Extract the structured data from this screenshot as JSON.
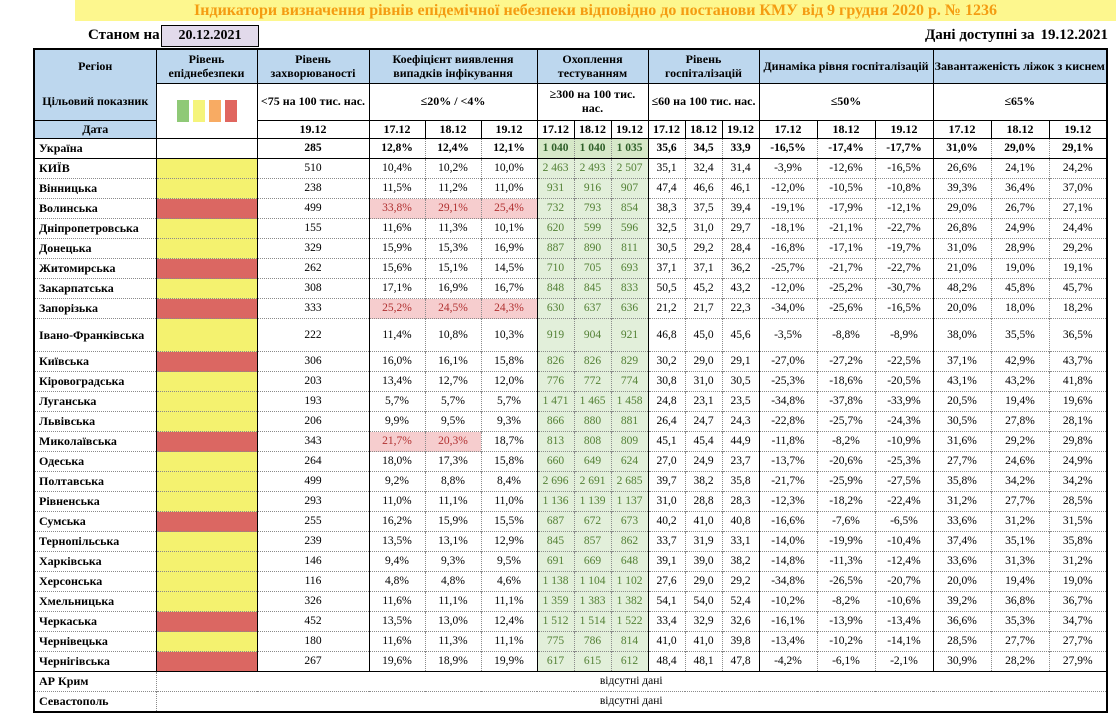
{
  "title": "Індикатори визначення рівнів епідемічної небезпеки відповідно до постанови КМУ від 9 грудня 2020 р. № 1236",
  "as_of": {
    "label": "Станом на",
    "date": "20.12.2021"
  },
  "available": {
    "label": "Дані доступні за",
    "date": "19.12.2021"
  },
  "colors": {
    "title_bg": "#FDF78E",
    "title_text": "#F49C12",
    "header_bg": "#BDD7EE",
    "date_box_bg": "#E2DAEB",
    "epid_yellow": "#F4F26F",
    "epid_red": "#DB6762",
    "testing_bg": "#E2EFDA",
    "testing_text": "#538135",
    "alert_bg": "#F6CDCE",
    "alert_text": "#B03030"
  },
  "legend_colors": [
    "#8FC977",
    "#F5F47B",
    "#F8AB63",
    "#E0665F"
  ],
  "columns": {
    "region_header": "Регіон",
    "target_label": "Цільовий показник",
    "date_label": "Дата",
    "groups": [
      {
        "id": "epid",
        "title": "Рівень епіднебезпеки",
        "target": "",
        "dates": []
      },
      {
        "id": "incidence",
        "title": "Рівень захворюваності",
        "target": "<75 на 100 тис. нас.",
        "dates": [
          "19.12"
        ]
      },
      {
        "id": "detection",
        "title": "Коефіцієнт виявлення випадків інфікування",
        "target": "≤20% / <4%",
        "dates": [
          "17.12",
          "18.12",
          "19.12"
        ]
      },
      {
        "id": "testing",
        "title": "Охоплення тестуванням",
        "target": "≥300 на 100 тис. нас.",
        "dates": [
          "17.12",
          "18.12",
          "19.12"
        ]
      },
      {
        "id": "hosp",
        "title": "Рівень госпіталізацій",
        "target": "≤60 на 100 тис. нас.",
        "dates": [
          "17.12",
          "18.12",
          "19.12"
        ]
      },
      {
        "id": "dynamics",
        "title": "Динаміка рівня госпіталізацій",
        "target": "≤50%",
        "dates": [
          "17.12",
          "18.12",
          "19.12"
        ]
      },
      {
        "id": "beds",
        "title": "Завантаженість ліжок з киснем",
        "target": "≤65%",
        "dates": [
          "17.12",
          "18.12",
          "19.12"
        ]
      }
    ]
  },
  "rows": [
    {
      "region": "Україна",
      "bold": true,
      "epid": "none",
      "incidence": "285",
      "detection": [
        "12,8%",
        "12,4%",
        "12,1%"
      ],
      "detection_alert": [
        false,
        false,
        false
      ],
      "testing": [
        "1 040",
        "1 040",
        "1 035"
      ],
      "hosp": [
        "35,6",
        "34,5",
        "33,9"
      ],
      "dynamics": [
        "-16,5%",
        "-17,4%",
        "-17,7%"
      ],
      "beds": [
        "31,0%",
        "29,0%",
        "29,1%"
      ]
    },
    {
      "region": "КИЇВ",
      "solid_top": true,
      "epid": "yellow",
      "incidence": "510",
      "detection": [
        "10,4%",
        "10,2%",
        "10,0%"
      ],
      "detection_alert": [
        false,
        false,
        false
      ],
      "testing": [
        "2 463",
        "2 493",
        "2 507"
      ],
      "hosp": [
        "35,1",
        "32,4",
        "31,4"
      ],
      "dynamics": [
        "-3,9%",
        "-12,6%",
        "-16,5%"
      ],
      "beds": [
        "26,6%",
        "24,1%",
        "24,2%"
      ]
    },
    {
      "region": "Вінницька",
      "epid": "yellow",
      "incidence": "238",
      "detection": [
        "11,5%",
        "11,2%",
        "11,0%"
      ],
      "detection_alert": [
        false,
        false,
        false
      ],
      "testing": [
        "931",
        "916",
        "907"
      ],
      "hosp": [
        "47,4",
        "46,6",
        "46,1"
      ],
      "dynamics": [
        "-12,0%",
        "-10,5%",
        "-10,8%"
      ],
      "beds": [
        "39,3%",
        "36,4%",
        "37,0%"
      ]
    },
    {
      "region": "Волинська",
      "epid": "red",
      "incidence": "499",
      "detection": [
        "33,8%",
        "29,1%",
        "25,4%"
      ],
      "detection_alert": [
        true,
        true,
        true
      ],
      "testing": [
        "732",
        "793",
        "854"
      ],
      "hosp": [
        "38,3",
        "37,5",
        "39,4"
      ],
      "dynamics": [
        "-19,1%",
        "-17,9%",
        "-12,1%"
      ],
      "beds": [
        "29,0%",
        "26,7%",
        "27,1%"
      ]
    },
    {
      "region": "Дніпропетровська",
      "epid": "yellow",
      "incidence": "155",
      "detection": [
        "11,6%",
        "11,3%",
        "10,1%"
      ],
      "detection_alert": [
        false,
        false,
        false
      ],
      "testing": [
        "620",
        "599",
        "596"
      ],
      "hosp": [
        "32,5",
        "31,0",
        "29,7"
      ],
      "dynamics": [
        "-18,1%",
        "-21,1%",
        "-22,7%"
      ],
      "beds": [
        "26,8%",
        "24,9%",
        "24,4%"
      ]
    },
    {
      "region": "Донецька",
      "epid": "yellow",
      "incidence": "329",
      "detection": [
        "15,9%",
        "15,3%",
        "16,9%"
      ],
      "detection_alert": [
        false,
        false,
        false
      ],
      "testing": [
        "887",
        "890",
        "811"
      ],
      "hosp": [
        "30,5",
        "29,2",
        "28,4"
      ],
      "dynamics": [
        "-16,8%",
        "-17,1%",
        "-19,7%"
      ],
      "beds": [
        "31,0%",
        "28,9%",
        "29,2%"
      ]
    },
    {
      "region": "Житомирська",
      "epid": "red",
      "incidence": "262",
      "detection": [
        "15,6%",
        "15,1%",
        "14,5%"
      ],
      "detection_alert": [
        false,
        false,
        false
      ],
      "testing": [
        "710",
        "705",
        "693"
      ],
      "hosp": [
        "37,1",
        "37,1",
        "36,2"
      ],
      "dynamics": [
        "-25,7%",
        "-21,7%",
        "-22,7%"
      ],
      "beds": [
        "21,0%",
        "19,0%",
        "19,1%"
      ]
    },
    {
      "region": "Закарпатська",
      "epid": "yellow",
      "incidence": "308",
      "detection": [
        "17,1%",
        "16,9%",
        "16,7%"
      ],
      "detection_alert": [
        false,
        false,
        false
      ],
      "testing": [
        "848",
        "845",
        "833"
      ],
      "hosp": [
        "50,5",
        "45,2",
        "43,2"
      ],
      "dynamics": [
        "-12,0%",
        "-25,2%",
        "-30,7%"
      ],
      "beds": [
        "48,2%",
        "45,8%",
        "45,7%"
      ]
    },
    {
      "region": "Запорізька",
      "epid": "red",
      "incidence": "333",
      "detection": [
        "25,2%",
        "24,5%",
        "24,3%"
      ],
      "detection_alert": [
        true,
        true,
        true
      ],
      "testing": [
        "630",
        "637",
        "636"
      ],
      "hosp": [
        "21,2",
        "21,7",
        "22,3"
      ],
      "dynamics": [
        "-34,0%",
        "-25,6%",
        "-16,5%"
      ],
      "beds": [
        "20,0%",
        "18,0%",
        "18,2%"
      ]
    },
    {
      "region": "Івано-Франківська",
      "tall": true,
      "epid": "yellow",
      "incidence": "222",
      "detection": [
        "11,4%",
        "10,8%",
        "10,3%"
      ],
      "detection_alert": [
        false,
        false,
        false
      ],
      "testing": [
        "919",
        "904",
        "921"
      ],
      "hosp": [
        "46,8",
        "45,0",
        "45,6"
      ],
      "dynamics": [
        "-3,5%",
        "-8,8%",
        "-8,9%"
      ],
      "beds": [
        "38,0%",
        "35,5%",
        "36,5%"
      ]
    },
    {
      "region": "Київська",
      "epid": "red",
      "incidence": "306",
      "detection": [
        "16,0%",
        "16,1%",
        "15,8%"
      ],
      "detection_alert": [
        false,
        false,
        false
      ],
      "testing": [
        "826",
        "826",
        "829"
      ],
      "hosp": [
        "30,2",
        "29,0",
        "29,1"
      ],
      "dynamics": [
        "-27,0%",
        "-27,2%",
        "-22,5%"
      ],
      "beds": [
        "37,1%",
        "42,9%",
        "43,7%"
      ]
    },
    {
      "region": "Кіровоградська",
      "epid": "yellow",
      "incidence": "203",
      "detection": [
        "13,4%",
        "12,7%",
        "12,0%"
      ],
      "detection_alert": [
        false,
        false,
        false
      ],
      "testing": [
        "776",
        "772",
        "774"
      ],
      "hosp": [
        "30,8",
        "31,0",
        "30,5"
      ],
      "dynamics": [
        "-25,3%",
        "-18,6%",
        "-20,5%"
      ],
      "beds": [
        "43,1%",
        "43,2%",
        "41,8%"
      ]
    },
    {
      "region": "Луганська",
      "epid": "yellow",
      "incidence": "193",
      "detection": [
        "5,7%",
        "5,7%",
        "5,7%"
      ],
      "detection_alert": [
        false,
        false,
        false
      ],
      "testing": [
        "1 471",
        "1 465",
        "1 458"
      ],
      "hosp": [
        "24,8",
        "23,1",
        "23,5"
      ],
      "dynamics": [
        "-34,8%",
        "-37,8%",
        "-33,9%"
      ],
      "beds": [
        "20,5%",
        "19,4%",
        "19,6%"
      ]
    },
    {
      "region": "Львівська",
      "epid": "yellow",
      "incidence": "206",
      "detection": [
        "9,9%",
        "9,5%",
        "9,3%"
      ],
      "detection_alert": [
        false,
        false,
        false
      ],
      "testing": [
        "866",
        "880",
        "881"
      ],
      "hosp": [
        "26,4",
        "24,7",
        "24,3"
      ],
      "dynamics": [
        "-22,8%",
        "-25,7%",
        "-24,3%"
      ],
      "beds": [
        "30,5%",
        "27,8%",
        "28,1%"
      ]
    },
    {
      "region": "Миколаївська",
      "epid": "red",
      "incidence": "343",
      "detection": [
        "21,7%",
        "20,3%",
        "18,7%"
      ],
      "detection_alert": [
        true,
        true,
        false
      ],
      "testing": [
        "813",
        "808",
        "809"
      ],
      "hosp": [
        "45,1",
        "45,4",
        "44,9"
      ],
      "dynamics": [
        "-11,8%",
        "-8,2%",
        "-10,9%"
      ],
      "beds": [
        "31,6%",
        "29,2%",
        "29,8%"
      ]
    },
    {
      "region": "Одеська",
      "epid": "yellow",
      "incidence": "264",
      "detection": [
        "18,0%",
        "17,3%",
        "15,8%"
      ],
      "detection_alert": [
        false,
        false,
        false
      ],
      "testing": [
        "660",
        "649",
        "624"
      ],
      "hosp": [
        "27,0",
        "24,9",
        "23,7"
      ],
      "dynamics": [
        "-13,7%",
        "-20,6%",
        "-25,3%"
      ],
      "beds": [
        "27,7%",
        "24,6%",
        "24,9%"
      ]
    },
    {
      "region": "Полтавська",
      "epid": "yellow",
      "incidence": "499",
      "detection": [
        "9,2%",
        "8,8%",
        "8,4%"
      ],
      "detection_alert": [
        false,
        false,
        false
      ],
      "testing": [
        "2 696",
        "2 691",
        "2 685"
      ],
      "hosp": [
        "39,7",
        "38,2",
        "35,8"
      ],
      "dynamics": [
        "-21,7%",
        "-25,9%",
        "-27,5%"
      ],
      "beds": [
        "35,8%",
        "34,2%",
        "34,2%"
      ]
    },
    {
      "region": "Рівненська",
      "epid": "yellow",
      "incidence": "293",
      "detection": [
        "11,0%",
        "11,1%",
        "11,0%"
      ],
      "detection_alert": [
        false,
        false,
        false
      ],
      "testing": [
        "1 136",
        "1 139",
        "1 137"
      ],
      "hosp": [
        "31,0",
        "28,8",
        "28,3"
      ],
      "dynamics": [
        "-12,3%",
        "-18,2%",
        "-22,4%"
      ],
      "beds": [
        "31,2%",
        "27,7%",
        "28,5%"
      ]
    },
    {
      "region": "Сумська",
      "epid": "red",
      "incidence": "255",
      "detection": [
        "16,2%",
        "15,9%",
        "15,5%"
      ],
      "detection_alert": [
        false,
        false,
        false
      ],
      "testing": [
        "687",
        "672",
        "673"
      ],
      "hosp": [
        "40,2",
        "41,0",
        "40,8"
      ],
      "dynamics": [
        "-16,6%",
        "-7,6%",
        "-6,5%"
      ],
      "beds": [
        "33,6%",
        "31,2%",
        "31,5%"
      ]
    },
    {
      "region": "Тернопільська",
      "epid": "yellow",
      "incidence": "239",
      "detection": [
        "13,5%",
        "13,1%",
        "12,9%"
      ],
      "detection_alert": [
        false,
        false,
        false
      ],
      "testing": [
        "845",
        "857",
        "862"
      ],
      "hosp": [
        "33,7",
        "31,9",
        "33,1"
      ],
      "dynamics": [
        "-14,0%",
        "-19,9%",
        "-10,4%"
      ],
      "beds": [
        "37,4%",
        "35,1%",
        "35,8%"
      ]
    },
    {
      "region": "Харківська",
      "epid": "yellow",
      "incidence": "146",
      "detection": [
        "9,4%",
        "9,3%",
        "9,5%"
      ],
      "detection_alert": [
        false,
        false,
        false
      ],
      "testing": [
        "691",
        "669",
        "648"
      ],
      "hosp": [
        "39,1",
        "39,0",
        "38,2"
      ],
      "dynamics": [
        "-14,8%",
        "-11,3%",
        "-12,4%"
      ],
      "beds": [
        "33,6%",
        "31,3%",
        "31,2%"
      ]
    },
    {
      "region": "Херсонська",
      "epid": "yellow",
      "incidence": "116",
      "detection": [
        "4,8%",
        "4,8%",
        "4,6%"
      ],
      "detection_alert": [
        false,
        false,
        false
      ],
      "testing": [
        "1 138",
        "1 104",
        "1 102"
      ],
      "hosp": [
        "27,6",
        "29,0",
        "29,2"
      ],
      "dynamics": [
        "-34,8%",
        "-26,5%",
        "-20,7%"
      ],
      "beds": [
        "20,0%",
        "19,4%",
        "19,0%"
      ]
    },
    {
      "region": "Хмельницька",
      "epid": "yellow",
      "incidence": "326",
      "detection": [
        "11,6%",
        "11,1%",
        "11,1%"
      ],
      "detection_alert": [
        false,
        false,
        false
      ],
      "testing": [
        "1 359",
        "1 383",
        "1 382"
      ],
      "hosp": [
        "54,1",
        "54,0",
        "52,4"
      ],
      "dynamics": [
        "-10,2%",
        "-8,2%",
        "-10,6%"
      ],
      "beds": [
        "39,2%",
        "36,8%",
        "36,7%"
      ]
    },
    {
      "region": "Черкаська",
      "epid": "red",
      "incidence": "452",
      "detection": [
        "13,5%",
        "13,0%",
        "12,4%"
      ],
      "detection_alert": [
        false,
        false,
        false
      ],
      "testing": [
        "1 512",
        "1 514",
        "1 522"
      ],
      "hosp": [
        "33,4",
        "32,9",
        "32,6"
      ],
      "dynamics": [
        "-16,1%",
        "-13,9%",
        "-13,4%"
      ],
      "beds": [
        "36,6%",
        "35,3%",
        "34,7%"
      ]
    },
    {
      "region": "Чернівецька",
      "epid": "yellow",
      "incidence": "180",
      "detection": [
        "11,6%",
        "11,3%",
        "11,1%"
      ],
      "detection_alert": [
        false,
        false,
        false
      ],
      "testing": [
        "775",
        "786",
        "814"
      ],
      "hosp": [
        "41,0",
        "41,0",
        "39,8"
      ],
      "dynamics": [
        "-13,4%",
        "-10,2%",
        "-14,1%"
      ],
      "beds": [
        "28,5%",
        "27,7%",
        "27,7%"
      ]
    },
    {
      "region": "Чернігівська",
      "epid": "red",
      "incidence": "267",
      "detection": [
        "19,6%",
        "18,9%",
        "19,9%"
      ],
      "detection_alert": [
        false,
        false,
        false
      ],
      "testing": [
        "617",
        "615",
        "612"
      ],
      "hosp": [
        "48,4",
        "48,1",
        "47,8"
      ],
      "dynamics": [
        "-4,2%",
        "-6,1%",
        "-2,1%"
      ],
      "beds": [
        "30,9%",
        "28,2%",
        "27,9%"
      ]
    }
  ],
  "no_data_rows": [
    {
      "region": "АР Крим",
      "text": "відсутні дані",
      "solid_top": true
    },
    {
      "region": "Севастополь",
      "text": "відсутні дані",
      "solid_top": false
    }
  ]
}
